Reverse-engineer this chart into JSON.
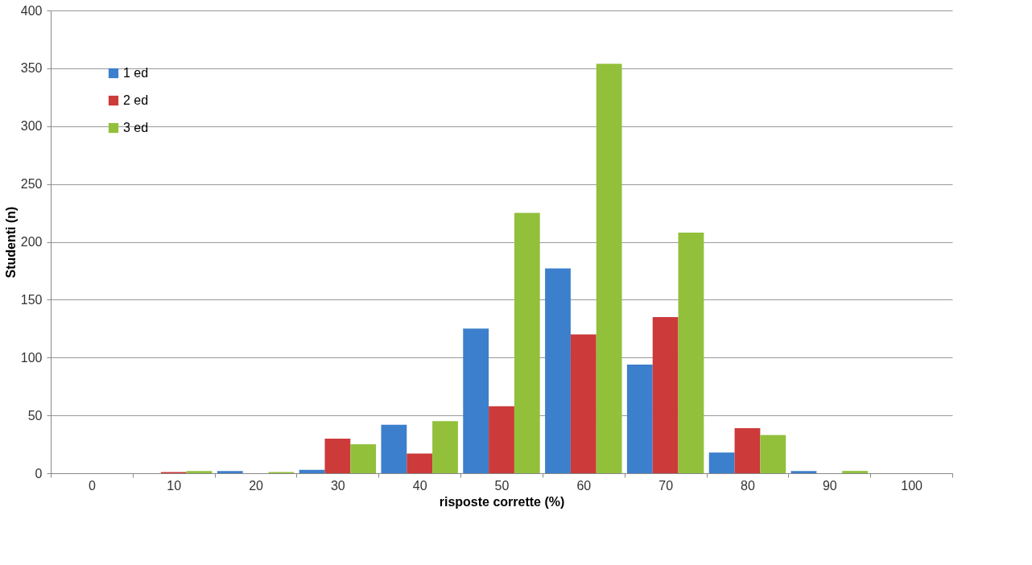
{
  "chart_data": {
    "type": "bar",
    "xlabel": "risposte corrette (%)",
    "ylabel": "Studenti (n)",
    "categories": [
      "0",
      "10",
      "20",
      "30",
      "40",
      "50",
      "60",
      "70",
      "80",
      "90",
      "100"
    ],
    "series": [
      {
        "name": "1 ed",
        "color": "#3c7fcc",
        "values": [
          0,
          0,
          2,
          3,
          42,
          125,
          177,
          94,
          18,
          2,
          0
        ]
      },
      {
        "name": "2 ed",
        "color": "#cc3a3a",
        "values": [
          0,
          1,
          0,
          30,
          17,
          58,
          120,
          135,
          39,
          0,
          0
        ]
      },
      {
        "name": "3 ed",
        "color": "#92c03b",
        "values": [
          0,
          2,
          1,
          25,
          45,
          225,
          354,
          208,
          33,
          2,
          0
        ]
      }
    ],
    "ylim": [
      0,
      400
    ],
    "yticks": [
      0,
      50,
      100,
      150,
      200,
      250,
      300,
      350,
      400
    ],
    "grid": "y",
    "legend": "top left"
  }
}
